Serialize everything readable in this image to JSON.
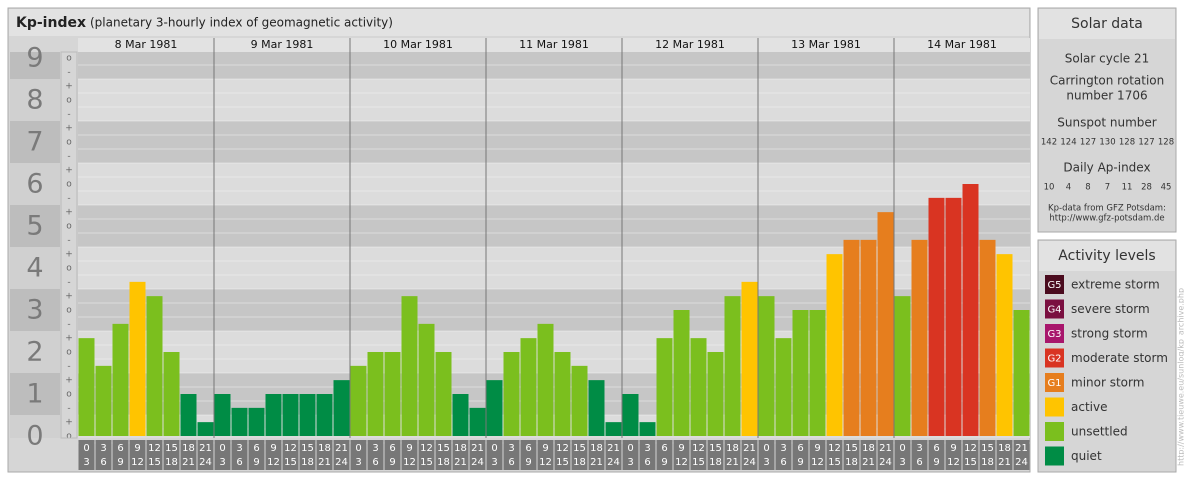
{
  "chart_data": {
    "type": "bar",
    "title": "Kp-index",
    "subtitle": "(planetary 3-hourly index of geomagnetic activity)",
    "ylim": [
      0,
      9
    ],
    "yticks": [
      0,
      1,
      2,
      3,
      4,
      5,
      6,
      7,
      8,
      9
    ],
    "minor_marks": [
      "-",
      "o",
      "+"
    ],
    "hours": [
      [
        "0",
        "3"
      ],
      [
        "3",
        "6"
      ],
      [
        "6",
        "9"
      ],
      [
        "9",
        "12"
      ],
      [
        "12",
        "15"
      ],
      [
        "15",
        "18"
      ],
      [
        "18",
        "21"
      ],
      [
        "21",
        "24"
      ]
    ],
    "days": [
      {
        "date": "8 Mar 1981",
        "values": [
          2.33,
          1.67,
          2.67,
          3.67,
          3.33,
          2,
          1,
          0.33
        ],
        "colors": [
          "#7bbf1e",
          "#7bbf1e",
          "#7bbf1e",
          "#ffc400",
          "#7bbf1e",
          "#7bbf1e",
          "#008c45",
          "#008c45"
        ]
      },
      {
        "date": "9 Mar 1981",
        "values": [
          1,
          0.67,
          0.67,
          1,
          1,
          1,
          1,
          1.33
        ],
        "colors": [
          "#008c45",
          "#008c45",
          "#008c45",
          "#008c45",
          "#008c45",
          "#008c45",
          "#008c45",
          "#008c45"
        ]
      },
      {
        "date": "10 Mar 1981",
        "values": [
          1.67,
          2,
          2,
          3.33,
          2.67,
          2,
          1,
          0.67
        ],
        "colors": [
          "#7bbf1e",
          "#7bbf1e",
          "#7bbf1e",
          "#7bbf1e",
          "#7bbf1e",
          "#7bbf1e",
          "#008c45",
          "#008c45"
        ]
      },
      {
        "date": "11 Mar 1981",
        "values": [
          1.33,
          2,
          2.33,
          2.67,
          2,
          1.67,
          1.33,
          0.33
        ],
        "colors": [
          "#008c45",
          "#7bbf1e",
          "#7bbf1e",
          "#7bbf1e",
          "#7bbf1e",
          "#7bbf1e",
          "#008c45",
          "#008c45"
        ]
      },
      {
        "date": "12 Mar 1981",
        "values": [
          1,
          0.33,
          2.33,
          3,
          2.33,
          2,
          3.33,
          3.67
        ],
        "colors": [
          "#008c45",
          "#008c45",
          "#7bbf1e",
          "#7bbf1e",
          "#7bbf1e",
          "#7bbf1e",
          "#7bbf1e",
          "#ffc400"
        ]
      },
      {
        "date": "13 Mar 1981",
        "values": [
          3.33,
          2.33,
          3,
          3,
          4.33,
          4.67,
          4.67,
          5.33
        ],
        "colors": [
          "#7bbf1e",
          "#7bbf1e",
          "#7bbf1e",
          "#7bbf1e",
          "#ffc400",
          "#e67e1e",
          "#e67e1e",
          "#e67e1e"
        ]
      },
      {
        "date": "14 Mar 1981",
        "values": [
          3.33,
          4.67,
          5.67,
          5.67,
          6,
          4.67,
          4.33,
          3
        ],
        "colors": [
          "#7bbf1e",
          "#e67e1e",
          "#d93422",
          "#d93422",
          "#d93422",
          "#e67e1e",
          "#ffc400",
          "#7bbf1e"
        ]
      }
    ],
    "solar": {
      "title": "Solar data",
      "cycle": "Solar cycle 21",
      "carrington": [
        "Carrington rotation",
        "number 1706"
      ],
      "sunspot_title": "Sunspot number",
      "sunspots": [
        142,
        124,
        127,
        130,
        128,
        127,
        128
      ],
      "ap_title": "Daily Ap-index",
      "ap": [
        10,
        4,
        8,
        7,
        11,
        28,
        45
      ],
      "source": [
        "Kp-data from GFZ Potsdam:",
        "http://www.gfz-potsdam.de"
      ]
    },
    "legend": {
      "title": "Activity levels",
      "levels": [
        {
          "code": "G5",
          "label": "extreme storm",
          "color": "#4a0b1e"
        },
        {
          "code": "G4",
          "label": "severe storm",
          "color": "#7a0f40"
        },
        {
          "code": "G3",
          "label": "strong storm",
          "color": "#a8166c"
        },
        {
          "code": "G2",
          "label": "moderate storm",
          "color": "#d93422"
        },
        {
          "code": "G1",
          "label": "minor storm",
          "color": "#e67e1e"
        },
        {
          "label": "active",
          "color": "#ffc400"
        },
        {
          "label": "unsettled",
          "color": "#7bbf1e"
        },
        {
          "label": "quiet",
          "color": "#008c45"
        }
      ]
    },
    "watermark": "http://www.tieuwe.eu/sunlog/kp_archive.php"
  }
}
